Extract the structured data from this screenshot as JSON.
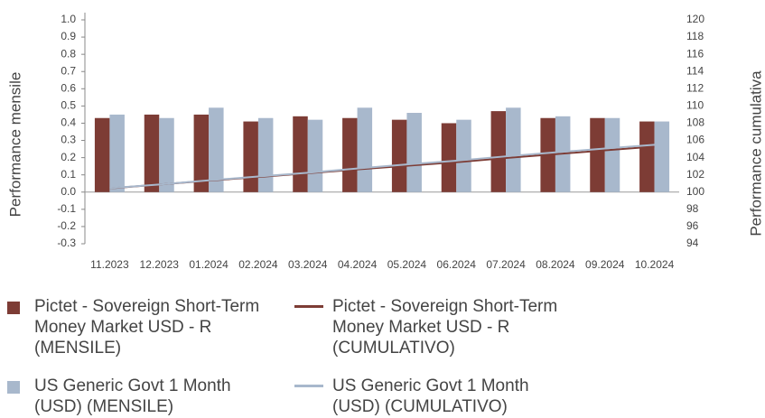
{
  "chart_data": {
    "type": "bar",
    "y_label": "Performance mensile",
    "y2_label": "Performance cumulativa",
    "categories": [
      "11.2023",
      "12.2023",
      "01.2024",
      "02.2024",
      "03.2024",
      "04.2024",
      "05.2024",
      "06.2024",
      "07.2024",
      "08.2024",
      "09.2024",
      "10.2024"
    ],
    "series": [
      {
        "name": "Pictet - Sovereign Short-Term Money Market USD - R (MENSILE)",
        "type": "bar",
        "color": "#7d3c35",
        "values": [
          0.43,
          0.45,
          0.45,
          0.41,
          0.44,
          0.43,
          0.42,
          0.4,
          0.47,
          0.43,
          0.43,
          0.41
        ]
      },
      {
        "name": "US Generic Govt 1 Month (USD) (MENSILE)",
        "type": "bar",
        "color": "#a8b8cc",
        "values": [
          0.45,
          0.43,
          0.49,
          0.43,
          0.42,
          0.49,
          0.46,
          0.42,
          0.49,
          0.44,
          0.43,
          0.41
        ]
      },
      {
        "name": "Pictet - Sovereign Short-Term Money Market USD - R (CUMULATIVO)",
        "type": "line",
        "axis": "y2",
        "color": "#7d3c35",
        "values": [
          100.43,
          100.88,
          101.33,
          101.75,
          102.19,
          102.63,
          103.06,
          103.47,
          103.96,
          104.4,
          104.85,
          105.28
        ]
      },
      {
        "name": "US Generic Govt 1 Month (USD) (CUMULATIVO)",
        "type": "line",
        "axis": "y2",
        "color": "#a8b8cc",
        "values": [
          100.45,
          100.88,
          101.37,
          101.81,
          102.24,
          102.74,
          103.21,
          103.65,
          104.15,
          104.61,
          105.06,
          105.49
        ]
      }
    ],
    "ylim": [
      -0.3,
      1.0
    ],
    "yticks": [
      -0.3,
      -0.2,
      -0.1,
      {
        "value": 0,
        "label": "0.0"
      },
      0.1,
      0.2,
      0.3,
      0.4,
      0.5,
      0.6,
      0.7,
      0.8,
      0.9,
      {
        "value": 1,
        "label": "1.0"
      }
    ],
    "y2lim": [
      94,
      120
    ],
    "y2ticks": [
      94,
      96,
      98,
      100,
      102,
      104,
      106,
      108,
      110,
      112,
      114,
      116,
      118,
      120
    ]
  }
}
